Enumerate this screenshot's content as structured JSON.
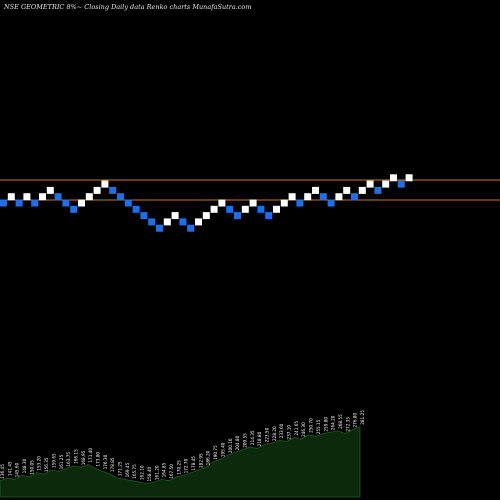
{
  "header": {
    "text": "NSE GEOMETRIC 8%~  Closing Daily data  Renko  charts MunafaSutra.com"
  },
  "colors": {
    "background": "#000000",
    "up_brick": "#ffffff",
    "down_brick": "#1f6fe8",
    "reference_line": "#c8781e",
    "volume_fill": "#0b2a0b",
    "volume_stroke": "#1e5a1e",
    "volume_label": "#ffffff"
  },
  "chart_data": {
    "type": "renko",
    "title": "NSE GEOMETRIC 8%~ Closing Daily data Renko charts MunafaSutra.com",
    "reference_lines": [
      180,
      200
    ],
    "bricks": [
      {
        "level": 10,
        "dir": "down"
      },
      {
        "level": 11,
        "dir": "up"
      },
      {
        "level": 10,
        "dir": "down"
      },
      {
        "level": 11,
        "dir": "up"
      },
      {
        "level": 10,
        "dir": "down"
      },
      {
        "level": 11,
        "dir": "up"
      },
      {
        "level": 12,
        "dir": "up"
      },
      {
        "level": 11,
        "dir": "down"
      },
      {
        "level": 10,
        "dir": "down"
      },
      {
        "level": 9,
        "dir": "down"
      },
      {
        "level": 10,
        "dir": "up"
      },
      {
        "level": 11,
        "dir": "up"
      },
      {
        "level": 12,
        "dir": "up"
      },
      {
        "level": 13,
        "dir": "up"
      },
      {
        "level": 12,
        "dir": "down"
      },
      {
        "level": 11,
        "dir": "down"
      },
      {
        "level": 10,
        "dir": "down"
      },
      {
        "level": 9,
        "dir": "down"
      },
      {
        "level": 8,
        "dir": "down"
      },
      {
        "level": 7,
        "dir": "down"
      },
      {
        "level": 6,
        "dir": "down"
      },
      {
        "level": 7,
        "dir": "up"
      },
      {
        "level": 8,
        "dir": "up"
      },
      {
        "level": 7,
        "dir": "down"
      },
      {
        "level": 6,
        "dir": "down"
      },
      {
        "level": 7,
        "dir": "up"
      },
      {
        "level": 8,
        "dir": "up"
      },
      {
        "level": 9,
        "dir": "up"
      },
      {
        "level": 10,
        "dir": "up"
      },
      {
        "level": 9,
        "dir": "down"
      },
      {
        "level": 8,
        "dir": "down"
      },
      {
        "level": 9,
        "dir": "up"
      },
      {
        "level": 10,
        "dir": "up"
      },
      {
        "level": 9,
        "dir": "down"
      },
      {
        "level": 8,
        "dir": "down"
      },
      {
        "level": 9,
        "dir": "up"
      },
      {
        "level": 10,
        "dir": "up"
      },
      {
        "level": 11,
        "dir": "up"
      },
      {
        "level": 10,
        "dir": "down"
      },
      {
        "level": 11,
        "dir": "up"
      },
      {
        "level": 12,
        "dir": "up"
      },
      {
        "level": 11,
        "dir": "down"
      },
      {
        "level": 10,
        "dir": "down"
      },
      {
        "level": 11,
        "dir": "up"
      },
      {
        "level": 12,
        "dir": "up"
      },
      {
        "level": 11,
        "dir": "down"
      },
      {
        "level": 12,
        "dir": "up"
      },
      {
        "level": 13,
        "dir": "up"
      },
      {
        "level": 12,
        "dir": "down"
      },
      {
        "level": 13,
        "dir": "up"
      },
      {
        "level": 14,
        "dir": "up"
      },
      {
        "level": 13,
        "dir": "down"
      },
      {
        "level": 14,
        "dir": "up"
      }
    ],
    "volume_labels": [
      "136.45",
      "141.45",
      "145.60",
      "148.30",
      "150.05",
      "153.20",
      "156.35",
      "159.65",
      "161.25",
      "163.75",
      "166.15",
      "168.95",
      "171.40",
      "173.80",
      "176.30",
      "178.85",
      "171.25",
      "169.45",
      "165.75",
      "162.10",
      "158.40",
      "161.20",
      "164.85",
      "167.50",
      "170.25",
      "172.70",
      "178.45",
      "182.95",
      "186.20",
      "190.75",
      "195.40",
      "200.10",
      "204.80",
      "209.55",
      "214.35",
      "218.80",
      "223.50",
      "228.20",
      "233.60",
      "237.10",
      "241.65",
      "246.30",
      "250.70",
      "255.15",
      "259.80",
      "264.20",
      "268.55",
      "272.35",
      "276.80",
      "281.25"
    ],
    "volume_values": [
      12,
      14,
      13,
      16,
      15,
      18,
      17,
      20,
      19,
      21,
      23,
      22,
      24,
      21,
      19,
      17,
      14,
      13,
      12,
      11,
      10,
      11,
      13,
      12,
      15,
      16,
      18,
      20,
      22,
      26,
      28,
      31,
      33,
      35,
      37,
      36,
      39,
      40,
      42,
      41,
      44,
      43,
      46,
      45,
      47,
      48,
      49,
      47,
      50,
      52
    ]
  }
}
